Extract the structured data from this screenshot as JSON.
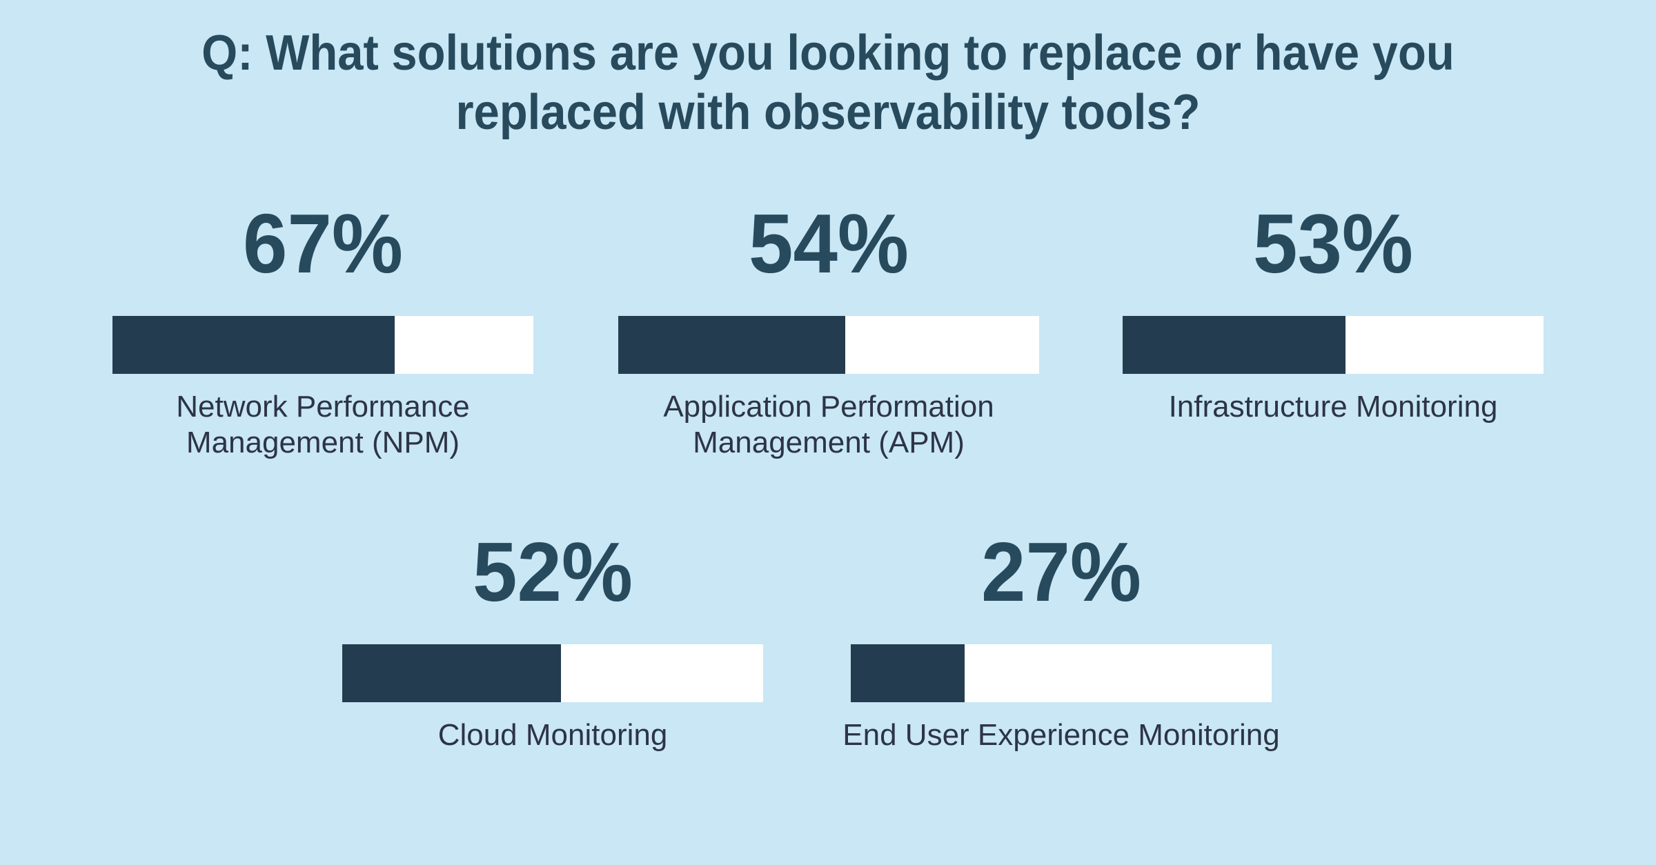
{
  "title": {
    "line1": "Q: What solutions are you looking to replace or have you",
    "line2": "replaced with observability tools?"
  },
  "colors": {
    "background": "#c9e7f5",
    "bar_fill": "#243c4f",
    "bar_track": "#ffffff",
    "heading_text": "#284a5d",
    "label_text": "#2d3447"
  },
  "chart_data": {
    "type": "bar",
    "title": "Q: What solutions are you looking to replace or have you replaced with observability tools?",
    "orientation": "horizontal-progress",
    "unit": "%",
    "value_range": [
      0,
      100
    ],
    "grid": false,
    "legend": false,
    "categories": [
      "Network Performance Management (NPM)",
      "Application Performation Management (APM)",
      "Infrastructure Monitoring",
      "Cloud Monitoring",
      "End User Experience Monitoring"
    ],
    "values": [
      67,
      54,
      53,
      52,
      27
    ],
    "layout_hint": "row 1: NPM, APM, Infrastructure; row 2: Cloud, End User Experience"
  },
  "groups": [
    {
      "percent": "67%",
      "value": 67,
      "label": "Network Performance\nManagement (NPM)"
    },
    {
      "percent": "54%",
      "value": 54,
      "label": "Application Performation\nManagement (APM)"
    },
    {
      "percent": "53%",
      "value": 53,
      "label": "Infrastructure Monitoring"
    },
    {
      "percent": "52%",
      "value": 52,
      "label": "Cloud Monitoring"
    },
    {
      "percent": "27%",
      "value": 27,
      "label": "End User Experience Monitoring"
    }
  ]
}
